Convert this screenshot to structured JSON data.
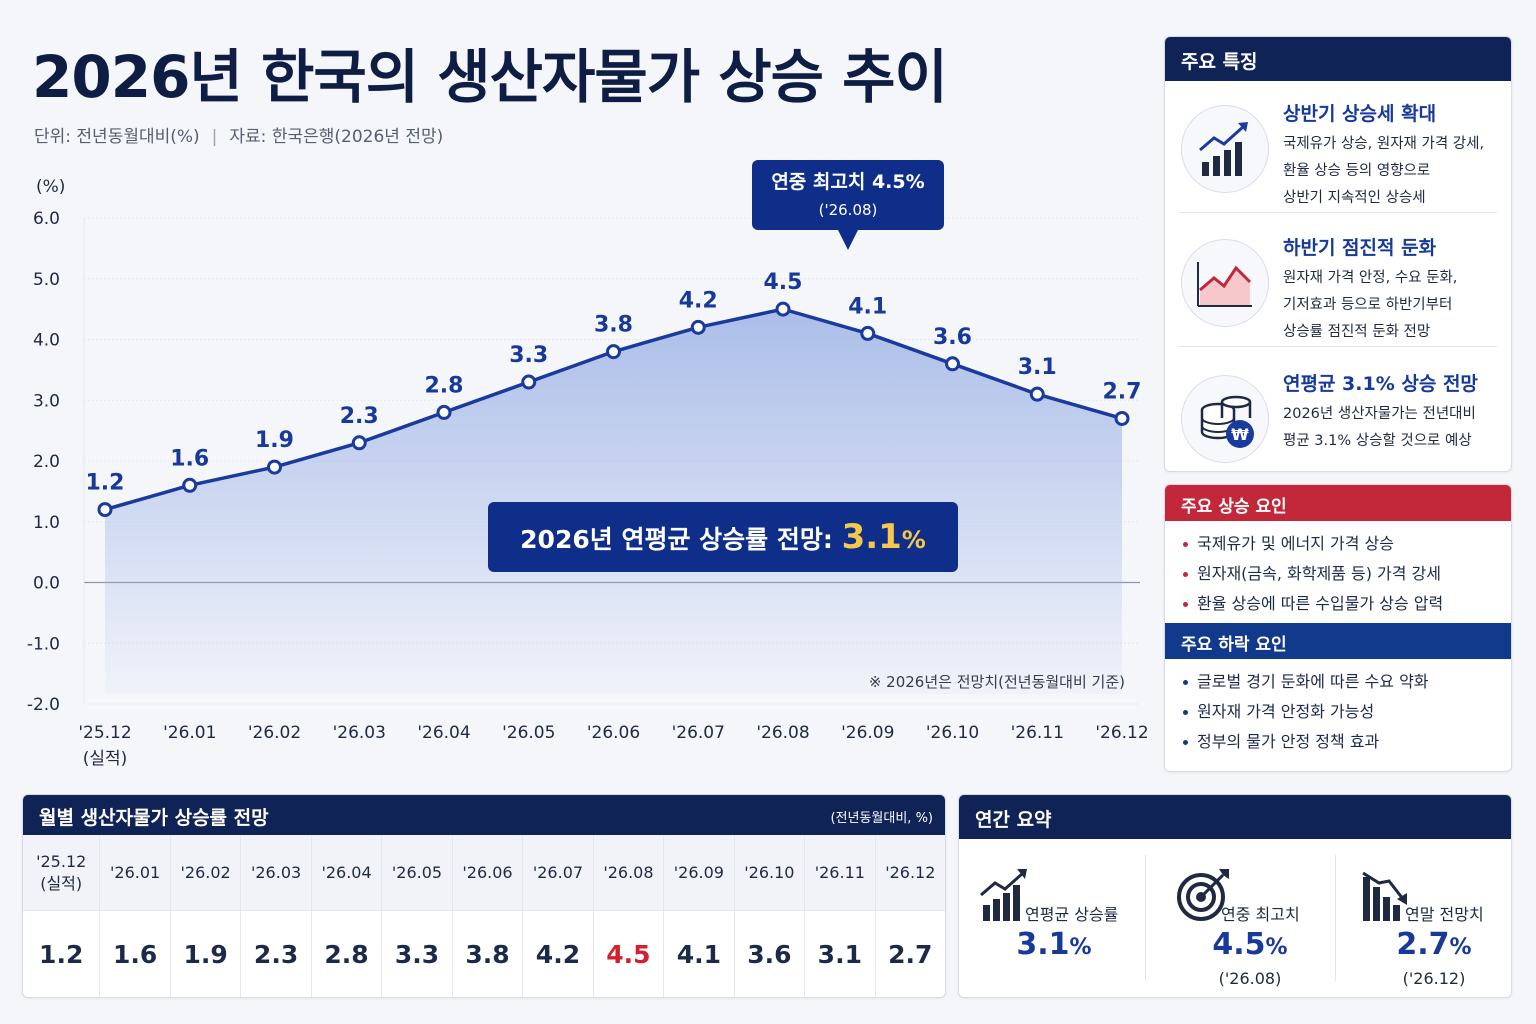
{
  "header": {
    "title": "2026년 한국의 생산자물가 상승 추이",
    "unit": "단위: 전년동월대비(%)",
    "separator": "|",
    "source": "자료: 한국은행(2026년 전망)"
  },
  "chart_data": {
    "type": "line",
    "ylabel": "(%)",
    "ylim": [
      -2.0,
      6.0
    ],
    "yticks": [
      "6.0",
      "5.0",
      "4.0",
      "3.0",
      "2.0",
      "1.0",
      "0.0",
      "-1.0",
      "-2.0"
    ],
    "categories": [
      "'25.12",
      "'26.01",
      "'26.02",
      "'26.03",
      "'26.04",
      "'26.05",
      "'26.06",
      "'26.07",
      "'26.08",
      "'26.09",
      "'26.10",
      "'26.11",
      "'26.12"
    ],
    "category_sub": [
      "(실적)",
      "",
      "",
      "",
      "",
      "",
      "",
      "",
      "",
      "",
      "",
      "",
      ""
    ],
    "values": [
      1.2,
      1.6,
      1.9,
      2.3,
      2.8,
      3.3,
      3.8,
      4.2,
      4.5,
      4.1,
      3.6,
      3.1,
      2.7
    ],
    "value_labels": [
      "1.2",
      "1.6",
      "1.9",
      "2.3",
      "2.8",
      "3.3",
      "3.8",
      "4.2",
      "4.5",
      "4.1",
      "3.6",
      "3.1",
      "2.7"
    ],
    "peak_callout": {
      "title": "연중 최고치 4.5%",
      "date": "('26.08)",
      "index": 8
    },
    "average_callout": {
      "text": "2026년 연평균 상승률 전망: ",
      "value": "3.1",
      "unit": "%"
    },
    "footnote": "※ 2026년은 전망치(전년동월대비 기준)",
    "line_color": "#1a3a9e",
    "fill_color": "#9fb4e6"
  },
  "features": {
    "title": "주요 특징",
    "items": [
      {
        "icon": "bar-chart-up-icon",
        "title": "상반기 상승세 확대",
        "lines": [
          "국제유가 상승, 원자재 가격 강세,",
          "환율 상승 등의 영향으로",
          "상반기 지속적인 상승세"
        ]
      },
      {
        "icon": "line-chart-down-icon",
        "title": "하반기 점진적 둔화",
        "lines": [
          "원자재 가격 안정, 수요 둔화,",
          "기저효과 등으로 하반기부터",
          "상승률 점진적 둔화 전망"
        ]
      },
      {
        "icon": "coins-won-icon",
        "title": "연평균 3.1% 상승 전망",
        "lines": [
          "2026년 생산자물가는 전년대비",
          "평균 3.1% 상승할 것으로 예상"
        ]
      }
    ]
  },
  "factors": {
    "up_title": "주요 상승 요인",
    "up_items": [
      "국제유가 및 에너지 가격 상승",
      "원자재(금속, 화학제품 등) 가격 강세",
      "환율 상승에 따른 수입물가 상승 압력"
    ],
    "down_title": "주요 하락 요인",
    "down_items": [
      "글로벌 경기 둔화에 따른 수요 약화",
      "원자재 가격 안정화 가능성",
      "정부의 물가 안정 정책 효과"
    ]
  },
  "table": {
    "title": "월별 생산자물가 상승률 전망",
    "unit": "(전년동월대비, %)",
    "headers": [
      "'25.12\n(실적)",
      "'26.01",
      "'26.02",
      "'26.03",
      "'26.04",
      "'26.05",
      "'26.06",
      "'26.07",
      "'26.08",
      "'26.09",
      "'26.10",
      "'26.11",
      "'26.12"
    ],
    "values": [
      "1.2",
      "1.6",
      "1.9",
      "2.3",
      "2.8",
      "3.3",
      "3.8",
      "4.2",
      "4.5",
      "4.1",
      "3.6",
      "3.1",
      "2.7"
    ],
    "peak_color": "#d4202e"
  },
  "summary": {
    "title": "연간 요약",
    "items": [
      {
        "icon": "growth-bars-icon",
        "label": "연평균 상승률",
        "value": "3.1",
        "unit": "%",
        "date": ""
      },
      {
        "icon": "target-icon",
        "label": "연중 최고치",
        "value": "4.5",
        "unit": "%",
        "date": "('26.08)"
      },
      {
        "icon": "decline-bars-icon",
        "label": "연말 전망치",
        "value": "2.7",
        "unit": "%",
        "date": "('26.12)"
      }
    ]
  }
}
